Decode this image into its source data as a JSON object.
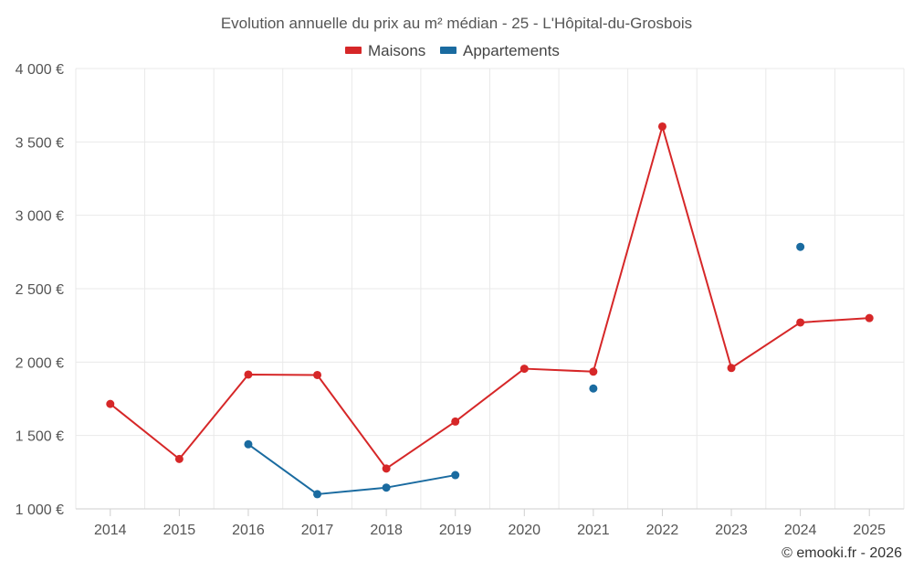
{
  "chart_data": {
    "type": "line",
    "title": "Evolution annuelle du prix au m² médian - 25 - L'Hôpital-du-Grosbois",
    "categories": [
      "2014",
      "2015",
      "2016",
      "2017",
      "2018",
      "2019",
      "2020",
      "2021",
      "2022",
      "2023",
      "2024",
      "2025"
    ],
    "ylim": [
      1000,
      4000
    ],
    "yticks": [
      1000,
      1500,
      2000,
      2500,
      3000,
      3500,
      4000
    ],
    "ytick_labels": [
      "1 000 €",
      "1 500 €",
      "2 000 €",
      "2 500 €",
      "3 000 €",
      "3 500 €",
      "4 000 €"
    ],
    "xlabel": "",
    "ylabel": "",
    "grid": true,
    "legend_position": "top-center",
    "series": [
      {
        "name": "Maisons",
        "color": "#d62728",
        "values": [
          1715,
          1340,
          1915,
          1912,
          1275,
          1595,
          1955,
          1935,
          3605,
          1960,
          2270,
          2300
        ]
      },
      {
        "name": "Appartements",
        "color": "#1a6ba0",
        "values": [
          null,
          null,
          1440,
          1100,
          1145,
          1230,
          null,
          1820,
          null,
          null,
          2785,
          null
        ]
      }
    ],
    "credit": "© emooki.fr - 2026"
  }
}
